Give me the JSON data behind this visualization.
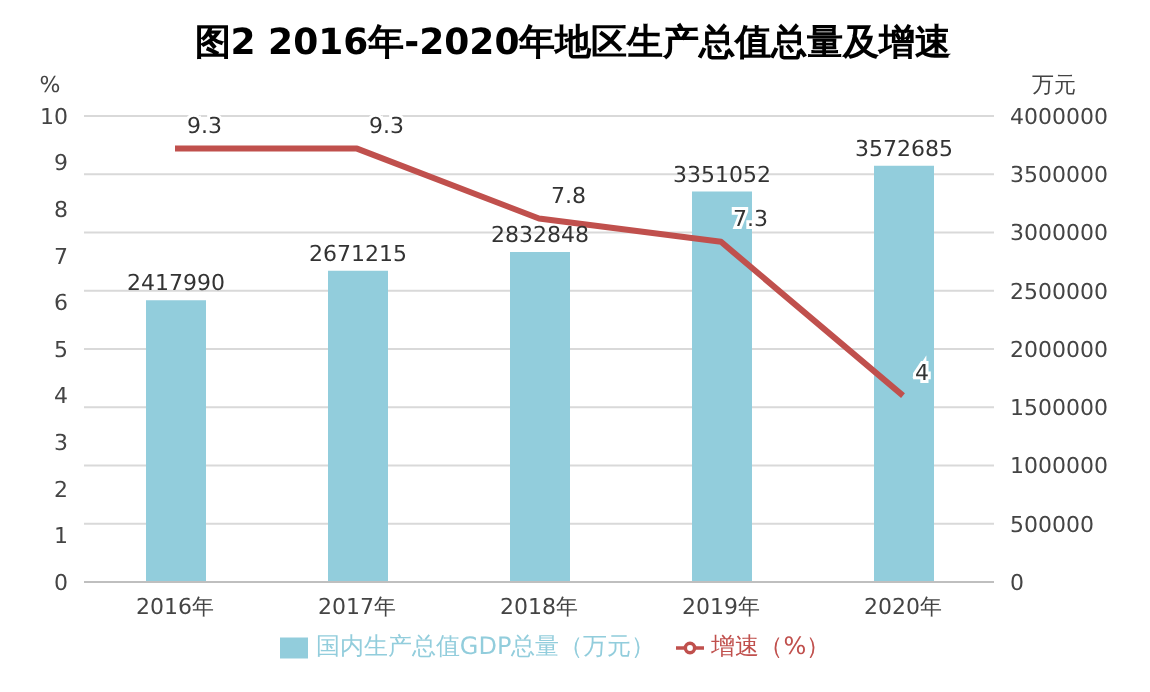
{
  "chart_data": {
    "type": "bar",
    "title": "图2  2016年-2020年地区生产总值总量及增速",
    "categories": [
      "2016年",
      "2017年",
      "2018年",
      "2019年",
      "2020年"
    ],
    "series": [
      {
        "name": "国内生产总值GDP总量（万元）",
        "axis": "y2",
        "color": "#92cddc",
        "values": [
          2417990,
          2671215,
          2832848,
          3351052,
          3572685
        ]
      },
      {
        "name": "增速（%）",
        "type": "line",
        "axis": "y",
        "color": "#c0504d",
        "values": [
          9.3,
          9.3,
          7.8,
          7.3,
          4
        ]
      }
    ],
    "ylabel": "%",
    "y2label": "万元",
    "ylim": [
      0,
      10
    ],
    "yticks": [
      0,
      1,
      2,
      3,
      4,
      5,
      6,
      7,
      8,
      9,
      10
    ],
    "y2lim": [
      0,
      4000000
    ],
    "y2ticks": [
      0,
      500000,
      1000000,
      1500000,
      2000000,
      2500000,
      3000000,
      3500000,
      4000000
    ],
    "grid": true,
    "legend": "bottom",
    "data_labels": true,
    "marker": "none"
  }
}
